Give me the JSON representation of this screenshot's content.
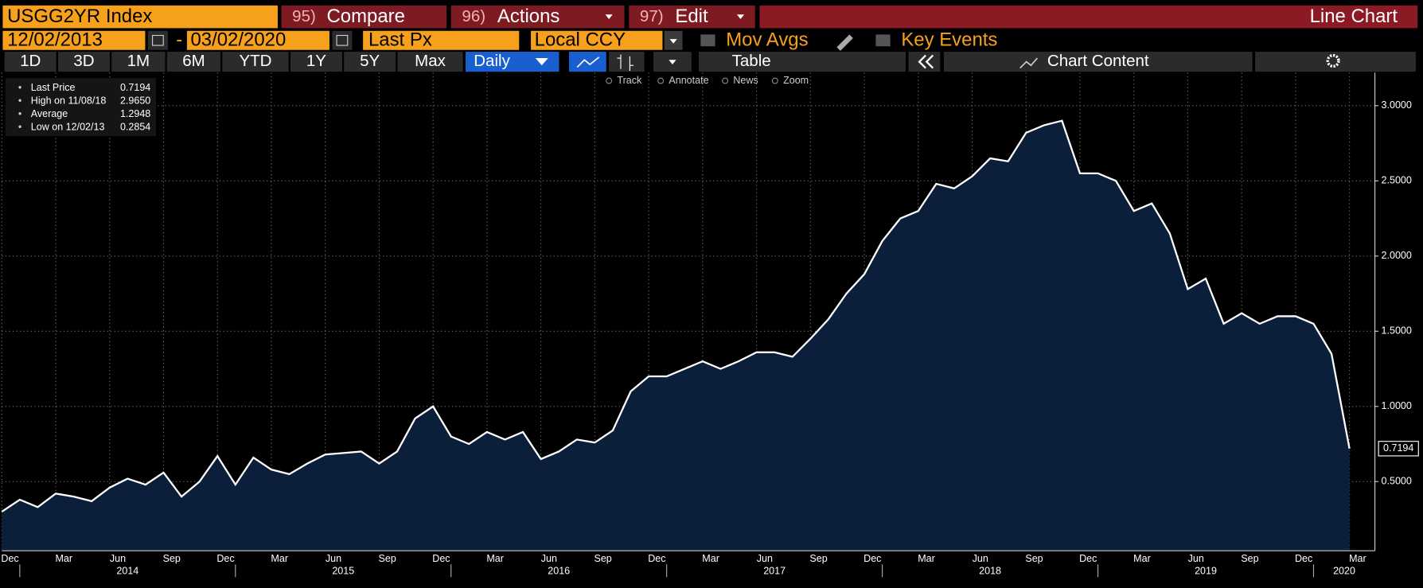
{
  "header": {
    "ticker": "USGG2YR Index",
    "menus": [
      {
        "num": "95)",
        "label": "Compare"
      },
      {
        "num": "96)",
        "label": "Actions"
      },
      {
        "num": "97)",
        "label": "Edit"
      }
    ],
    "view": "Line Chart",
    "start_date": "12/02/2013",
    "date_sep": "-",
    "end_date": "03/02/2020",
    "field": "Last Px",
    "currency": "Local CCY",
    "mov_avgs": "Mov Avgs",
    "key_events": "Key Events",
    "ranges": [
      "1D",
      "3D",
      "1M",
      "6M",
      "YTD",
      "1Y",
      "5Y",
      "Max"
    ],
    "period": "Daily",
    "table": "Table",
    "chart_content": "Chart Content",
    "tools": [
      "Track",
      "Annotate",
      "News",
      "Zoom"
    ]
  },
  "chart_data": {
    "type": "area",
    "legend_stats": [
      {
        "label": "Last Price",
        "value": "0.7194"
      },
      {
        "label": "High on 11/08/18",
        "value": "2.9650"
      },
      {
        "label": "Average",
        "value": "1.2948"
      },
      {
        "label": "Low on 12/02/13",
        "value": "0.2854"
      }
    ],
    "last_price_tag": "0.7194",
    "x": [
      "2013-12",
      "2014-01",
      "2014-02",
      "2014-03",
      "2014-04",
      "2014-05",
      "2014-06",
      "2014-07",
      "2014-08",
      "2014-09",
      "2014-10",
      "2014-11",
      "2014-12",
      "2015-01",
      "2015-02",
      "2015-03",
      "2015-04",
      "2015-05",
      "2015-06",
      "2015-07",
      "2015-08",
      "2015-09",
      "2015-10",
      "2015-11",
      "2015-12",
      "2016-01",
      "2016-02",
      "2016-03",
      "2016-04",
      "2016-05",
      "2016-06",
      "2016-07",
      "2016-08",
      "2016-09",
      "2016-10",
      "2016-11",
      "2016-12",
      "2017-01",
      "2017-02",
      "2017-03",
      "2017-04",
      "2017-05",
      "2017-06",
      "2017-07",
      "2017-08",
      "2017-09",
      "2017-10",
      "2017-11",
      "2017-12",
      "2018-01",
      "2018-02",
      "2018-03",
      "2018-04",
      "2018-05",
      "2018-06",
      "2018-07",
      "2018-08",
      "2018-09",
      "2018-10",
      "2018-11",
      "2018-12",
      "2019-01",
      "2019-02",
      "2019-03",
      "2019-04",
      "2019-05",
      "2019-06",
      "2019-07",
      "2019-08",
      "2019-09",
      "2019-10",
      "2019-11",
      "2019-12",
      "2020-01",
      "2020-02",
      "2020-03"
    ],
    "series": [
      {
        "name": "Last Price",
        "color": "#ffffff",
        "fill": "#0b1f3b",
        "values": [
          0.3,
          0.38,
          0.33,
          0.42,
          0.4,
          0.37,
          0.46,
          0.52,
          0.48,
          0.56,
          0.4,
          0.5,
          0.67,
          0.48,
          0.66,
          0.58,
          0.55,
          0.62,
          0.68,
          0.69,
          0.7,
          0.62,
          0.7,
          0.92,
          1.0,
          0.8,
          0.75,
          0.83,
          0.78,
          0.83,
          0.65,
          0.7,
          0.78,
          0.76,
          0.84,
          1.1,
          1.2,
          1.2,
          1.25,
          1.3,
          1.25,
          1.3,
          1.36,
          1.36,
          1.33,
          1.45,
          1.58,
          1.75,
          1.88,
          2.1,
          2.25,
          2.3,
          2.48,
          2.45,
          2.53,
          2.65,
          2.63,
          2.82,
          2.87,
          2.9,
          2.55,
          2.55,
          2.5,
          2.3,
          2.35,
          2.15,
          1.78,
          1.85,
          1.55,
          1.62,
          1.55,
          1.6,
          1.6,
          1.55,
          1.35,
          0.7194
        ]
      }
    ],
    "xlim": [
      "2013-12",
      "2020-03"
    ],
    "xticks": [
      {
        "value": "2013-12",
        "label": "Dec"
      },
      {
        "value": "2014-03",
        "label": "Mar"
      },
      {
        "value": "2014-06",
        "label": "Jun"
      },
      {
        "value": "2014-09",
        "label": "Sep"
      },
      {
        "value": "2014-12",
        "label": "Dec"
      },
      {
        "value": "2015-03",
        "label": "Mar"
      },
      {
        "value": "2015-06",
        "label": "Jun"
      },
      {
        "value": "2015-09",
        "label": "Sep"
      },
      {
        "value": "2015-12",
        "label": "Dec"
      },
      {
        "value": "2016-03",
        "label": "Mar"
      },
      {
        "value": "2016-06",
        "label": "Jun"
      },
      {
        "value": "2016-09",
        "label": "Sep"
      },
      {
        "value": "2016-12",
        "label": "Dec"
      },
      {
        "value": "2017-03",
        "label": "Mar"
      },
      {
        "value": "2017-06",
        "label": "Jun"
      },
      {
        "value": "2017-09",
        "label": "Sep"
      },
      {
        "value": "2017-12",
        "label": "Dec"
      },
      {
        "value": "2018-03",
        "label": "Mar"
      },
      {
        "value": "2018-06",
        "label": "Jun"
      },
      {
        "value": "2018-09",
        "label": "Sep"
      },
      {
        "value": "2018-12",
        "label": "Dec"
      },
      {
        "value": "2019-03",
        "label": "Mar"
      },
      {
        "value": "2019-06",
        "label": "Jun"
      },
      {
        "value": "2019-09",
        "label": "Sep"
      },
      {
        "value": "2019-12",
        "label": "Dec"
      },
      {
        "value": "2020-03",
        "label": "Mar"
      }
    ],
    "year_ticks": [
      2014,
      2015,
      2016,
      2017,
      2018,
      2019,
      2020
    ],
    "ylim": [
      0.04,
      3.22
    ],
    "yticks": [
      {
        "value": 0.5,
        "label": "0.5000"
      },
      {
        "value": 1.0,
        "label": "1.0000"
      },
      {
        "value": 1.5,
        "label": "1.5000"
      },
      {
        "value": 2.0,
        "label": "2.0000"
      },
      {
        "value": 2.5,
        "label": "2.5000"
      },
      {
        "value": 3.0,
        "label": "3.0000"
      }
    ],
    "grid": true
  }
}
